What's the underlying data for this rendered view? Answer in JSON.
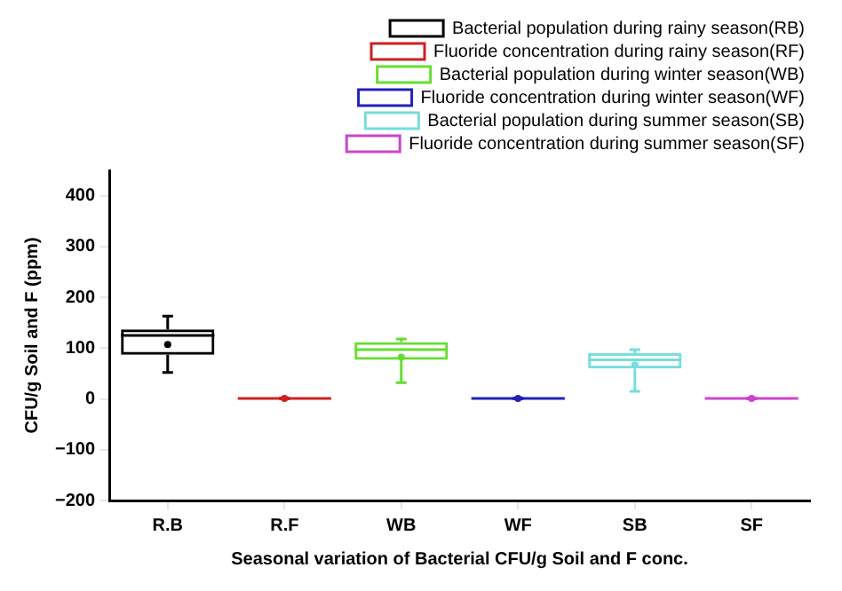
{
  "chart_data": {
    "type": "box",
    "xlabel": "Seasonal variation of Bacterial CFU/g Soil and F conc.",
    "ylabel": "CFU/g Soil and F (ppm)",
    "categories": [
      "R.B",
      "R.F",
      "WB",
      "WF",
      "SB",
      "SF"
    ],
    "ylim": [
      -200,
      450
    ],
    "yticks": [
      -200,
      -100,
      0,
      100,
      200,
      300,
      400
    ],
    "grid": false,
    "legend": "top right",
    "series": [
      {
        "name": "Bacterial population during rainy season(RB)",
        "color": "#000000",
        "boxes": [
          {
            "low": 52,
            "q1": 87,
            "median": 125,
            "q3": 137,
            "high": 163,
            "mean": 107
          },
          null,
          null,
          null,
          null,
          null
        ]
      },
      {
        "name": "Fluoride concentration during rainy season(RF)",
        "color": "#cc2222",
        "boxes": [
          null,
          {
            "low": 0,
            "q1": 0,
            "median": 1,
            "q3": 1,
            "high": 2,
            "mean": 1
          },
          null,
          null,
          null,
          null
        ]
      },
      {
        "name": "Bacterial population during winter season(WB)",
        "color": "#66dd33",
        "boxes": [
          null,
          null,
          {
            "low": 32,
            "q1": 77,
            "median": 97,
            "q3": 112,
            "high": 118,
            "mean": 82
          },
          null,
          null,
          null
        ]
      },
      {
        "name": "Fluoride concentration during winter season(WF)",
        "color": "#2222bb",
        "boxes": [
          null,
          null,
          null,
          {
            "low": 0,
            "q1": 0,
            "median": 1,
            "q3": 1,
            "high": 2,
            "mean": 1
          },
          null,
          null
        ]
      },
      {
        "name": "Bacterial population during summer season(SB)",
        "color": "#77dddd",
        "boxes": [
          null,
          null,
          null,
          null,
          {
            "low": 15,
            "q1": 60,
            "median": 77,
            "q3": 90,
            "high": 97,
            "mean": 67
          },
          null
        ]
      },
      {
        "name": "Fluoride concentration during summer season(SF)",
        "color": "#cc44cc",
        "boxes": [
          null,
          null,
          null,
          null,
          null,
          {
            "low": 0,
            "q1": 0,
            "median": 1,
            "q3": 1,
            "high": 2,
            "mean": 1
          }
        ]
      }
    ]
  }
}
